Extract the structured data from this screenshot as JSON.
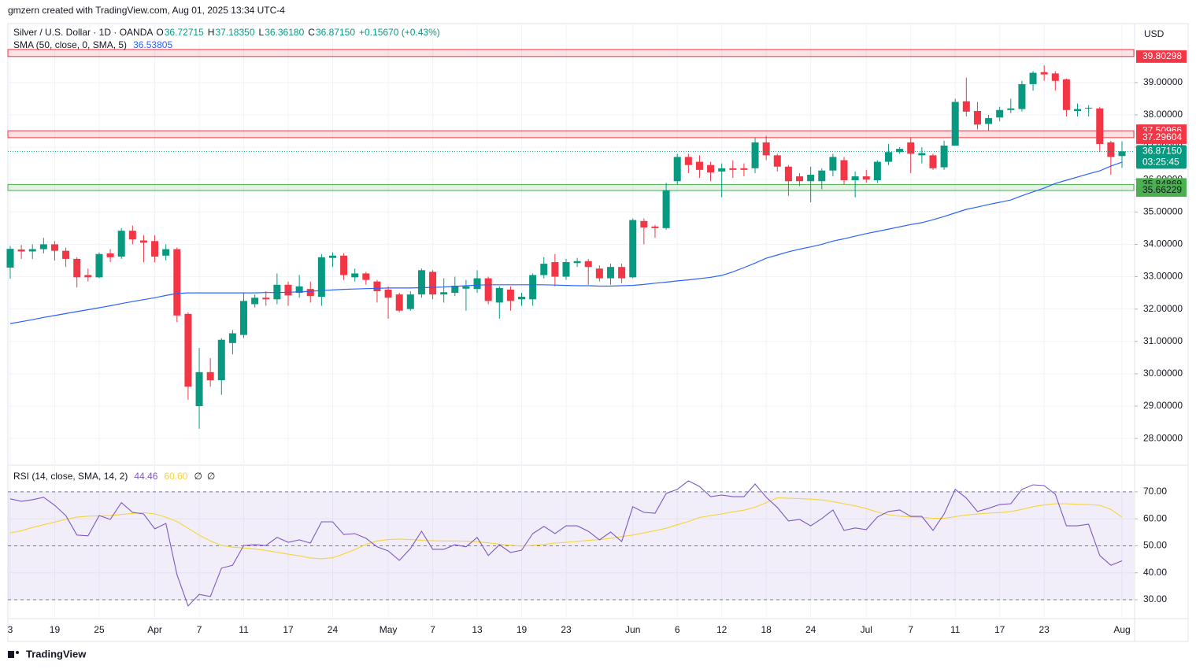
{
  "header": {
    "credit": "gmzern created with TradingView.com, Aug 01, 2025 13:34 UTC-4",
    "currency": "USD",
    "brand": "TradingView"
  },
  "chart_data": [
    {
      "type": "candlestick",
      "title": "Silver / U.S. Dollar · 1D · OANDA",
      "legend": {
        "fields": [
          {
            "key": "O",
            "value": "36.72715"
          },
          {
            "key": "H",
            "value": "37.18350"
          },
          {
            "key": "L",
            "value": "36.36180"
          },
          {
            "key": "C",
            "value": "36.87150"
          }
        ],
        "change": "+0.15670 (+0.43%)"
      },
      "up_color": "#089981",
      "down_color": "#f23645",
      "categories": [
        "3",
        null,
        null,
        null,
        "19",
        null,
        null,
        null,
        "25",
        null,
        null,
        null,
        null,
        "Apr",
        null,
        null,
        null,
        "7",
        null,
        null,
        null,
        "11",
        null,
        null,
        null,
        "17",
        null,
        null,
        null,
        "24",
        null,
        null,
        null,
        null,
        "May",
        null,
        null,
        null,
        "7",
        null,
        null,
        null,
        "13",
        null,
        null,
        null,
        "19",
        null,
        null,
        null,
        "23",
        null,
        null,
        null,
        null,
        null,
        "Jun",
        null,
        null,
        null,
        "6",
        null,
        null,
        null,
        "12",
        null,
        null,
        null,
        "18",
        null,
        null,
        null,
        "24",
        null,
        null,
        null,
        null,
        "Jul",
        null,
        null,
        null,
        "7",
        null,
        null,
        null,
        "11",
        null,
        null,
        null,
        "17",
        null,
        null,
        null,
        "23",
        null,
        null,
        null,
        null,
        null,
        null,
        "Aug"
      ],
      "open": [
        33.28,
        33.84,
        33.78,
        33.85,
        34.0,
        33.8,
        33.55,
        33.05,
        32.98,
        33.72,
        33.62,
        34.42,
        34.12,
        34.1,
        33.65,
        33.85,
        31.85,
        29.0,
        30.05,
        29.8,
        30.95,
        31.2,
        32.15,
        32.35,
        32.3,
        32.75,
        32.5,
        32.62,
        32.38,
        33.58,
        33.65,
        32.98,
        33.1,
        32.85,
        32.6,
        32.45,
        32.0,
        32.45,
        33.15,
        32.45,
        32.5,
        32.63,
        32.62,
        32.95,
        32.2,
        32.6,
        32.3,
        32.3,
        33.05,
        33.45,
        33.0,
        33.42,
        33.48,
        33.25,
        32.95,
        33.3,
        32.98,
        34.72,
        34.55,
        34.5,
        35.95,
        36.7,
        36.55,
        36.45,
        36.25,
        36.35,
        36.35,
        36.35,
        37.15,
        36.75,
        36.4,
        36.1,
        35.95,
        35.95,
        36.28,
        36.6,
        35.98,
        36.1,
        35.98,
        36.55,
        36.85,
        37.15,
        36.75,
        36.75,
        36.38,
        37.05,
        38.42,
        38.12,
        37.72,
        37.92,
        38.15,
        38.18,
        38.95,
        39.32,
        39.28,
        39.1,
        38.12,
        38.2,
        38.2,
        37.15,
        36.72715
      ],
      "high": [
        33.95,
        33.98,
        34.0,
        34.2,
        34.1,
        33.9,
        33.6,
        33.25,
        33.75,
        33.85,
        34.5,
        34.58,
        34.28,
        34.28,
        34.0,
        33.9,
        31.9,
        30.8,
        30.48,
        31.1,
        31.35,
        32.5,
        32.45,
        32.55,
        33.1,
        32.85,
        33.05,
        32.85,
        33.7,
        33.75,
        33.72,
        33.25,
        33.15,
        32.9,
        32.7,
        32.5,
        32.55,
        33.25,
        33.2,
        32.95,
        33.0,
        32.9,
        33.2,
        33.0,
        32.7,
        32.7,
        32.5,
        33.1,
        33.6,
        33.7,
        33.55,
        33.58,
        33.55,
        33.35,
        33.4,
        33.4,
        34.8,
        34.8,
        34.6,
        35.9,
        36.8,
        36.8,
        36.75,
        36.55,
        36.5,
        36.6,
        36.5,
        37.3,
        37.35,
        36.8,
        36.45,
        36.2,
        36.4,
        36.35,
        36.8,
        36.7,
        36.25,
        36.3,
        36.6,
        37.1,
        37.0,
        37.3,
        37.0,
        36.8,
        37.2,
        38.5,
        39.15,
        38.4,
        38.0,
        38.25,
        38.5,
        39.05,
        39.35,
        39.53,
        39.35,
        39.12,
        38.35,
        38.3,
        38.25,
        37.2,
        37.1835
      ],
      "low": [
        32.94,
        33.55,
        33.55,
        33.72,
        33.5,
        33.3,
        32.67,
        32.85,
        32.95,
        33.45,
        33.55,
        34.0,
        33.45,
        33.45,
        33.5,
        31.6,
        29.2,
        28.3,
        29.6,
        29.35,
        30.6,
        31.1,
        32.05,
        32.1,
        32.15,
        32.1,
        32.35,
        32.2,
        32.1,
        33.3,
        32.9,
        32.85,
        32.75,
        32.2,
        31.7,
        31.9,
        31.95,
        32.35,
        32.3,
        32.2,
        32.4,
        31.95,
        32.5,
        32.15,
        31.7,
        31.95,
        32.1,
        32.1,
        32.95,
        32.7,
        32.9,
        33.3,
        32.75,
        32.85,
        32.75,
        32.8,
        32.95,
        34.0,
        34.2,
        34.45,
        35.85,
        36.2,
        36.05,
        35.95,
        35.45,
        36.05,
        36.1,
        36.2,
        36.6,
        36.25,
        35.5,
        35.8,
        35.3,
        35.7,
        36.1,
        35.85,
        35.45,
        35.9,
        35.9,
        36.45,
        36.8,
        36.2,
        36.5,
        36.3,
        36.3,
        37.05,
        37.95,
        37.55,
        37.5,
        37.8,
        38.05,
        38.1,
        38.75,
        39.05,
        38.75,
        37.95,
        37.95,
        37.95,
        36.85,
        36.15,
        36.3618
      ],
      "close": [
        33.86,
        33.78,
        33.85,
        34.0,
        33.8,
        33.55,
        32.98,
        32.98,
        33.7,
        33.6,
        34.42,
        34.15,
        34.05,
        33.62,
        33.85,
        31.8,
        29.6,
        30.05,
        29.8,
        31.05,
        31.25,
        32.25,
        32.35,
        32.3,
        32.75,
        32.42,
        32.7,
        32.4,
        33.6,
        33.65,
        33.05,
        33.1,
        32.9,
        32.55,
        32.35,
        31.95,
        32.45,
        33.2,
        32.45,
        32.52,
        32.72,
        32.7,
        32.95,
        32.25,
        32.65,
        32.25,
        32.38,
        33.05,
        33.4,
        33.0,
        33.45,
        33.48,
        33.3,
        32.95,
        33.3,
        32.95,
        34.75,
        34.52,
        34.5,
        35.67,
        36.7,
        36.45,
        36.3,
        36.22,
        36.35,
        36.3,
        36.3,
        37.15,
        36.75,
        36.4,
        35.95,
        35.95,
        36.15,
        36.28,
        36.7,
        35.98,
        36.1,
        36.0,
        36.55,
        36.85,
        36.95,
        36.8,
        36.82,
        36.35,
        37.05,
        38.4,
        38.1,
        37.7,
        37.9,
        38.15,
        38.2,
        38.95,
        39.3,
        39.25,
        39.05,
        38.15,
        38.18,
        38.22,
        37.1,
        36.7,
        36.8715
      ],
      "series": [
        {
          "name": "SMA (50, close, 0, SMA, 5)",
          "legend_value": "36.53805",
          "color": "#2962ff",
          "values": [
            31.55,
            31.61,
            31.67,
            31.74,
            31.8,
            31.86,
            31.92,
            31.98,
            32.04,
            32.1,
            32.17,
            32.23,
            32.29,
            32.35,
            32.42,
            32.48,
            32.5,
            32.5,
            32.5,
            32.5,
            32.5,
            32.5,
            32.5,
            32.51,
            32.51,
            32.52,
            32.53,
            32.55,
            32.57,
            32.59,
            32.61,
            32.62,
            32.63,
            32.64,
            32.65,
            32.65,
            32.65,
            32.66,
            32.67,
            32.68,
            32.7,
            32.72,
            32.74,
            32.75,
            32.75,
            32.75,
            32.75,
            32.75,
            32.75,
            32.74,
            32.73,
            32.72,
            32.72,
            32.71,
            32.71,
            32.72,
            32.73,
            32.76,
            32.8,
            32.83,
            32.87,
            32.9,
            32.94,
            32.98,
            33.04,
            33.15,
            33.28,
            33.42,
            33.57,
            33.67,
            33.77,
            33.85,
            33.92,
            34.0,
            34.1,
            34.17,
            34.25,
            34.33,
            34.4,
            34.47,
            34.54,
            34.61,
            34.67,
            34.76,
            34.86,
            34.97,
            35.08,
            35.15,
            35.23,
            35.3,
            35.37,
            35.5,
            35.62,
            35.74,
            35.88,
            35.98,
            36.08,
            36.18,
            36.27,
            36.42,
            36.53805
          ]
        }
      ],
      "zones": [
        {
          "color": "#f23645",
          "text_color": "#ffffff",
          "edges": [
            {
              "value": 40.02
            },
            {
              "value": 39.80298,
              "label": "39.80298"
            }
          ]
        },
        {
          "color": "#f23645",
          "text_color": "#ffffff",
          "edges": [
            {
              "value": 37.50966,
              "label": "37.50966"
            },
            {
              "value": 37.29604,
              "label": "37.29604"
            }
          ]
        },
        {
          "color": "#4caf50",
          "text_color": "#131722",
          "edges": [
            {
              "value": 35.84869,
              "label": "35.84869"
            },
            {
              "value": 35.66229,
              "label": "35.66229"
            }
          ]
        }
      ],
      "last_price": {
        "value": 36.8715,
        "label": "36.87150",
        "countdown": "03:25:45",
        "color": "#089981"
      },
      "ylim": [
        27.2,
        40.82
      ],
      "yticks": [
        {
          "value": 28,
          "label": "28.00000"
        },
        {
          "value": 29,
          "label": "29.00000"
        },
        {
          "value": 30,
          "label": "30.00000"
        },
        {
          "value": 31,
          "label": "31.00000"
        },
        {
          "value": 32,
          "label": "32.00000"
        },
        {
          "value": 33,
          "label": "33.00000"
        },
        {
          "value": 34,
          "label": "34.00000"
        },
        {
          "value": 35,
          "label": "35.00000"
        },
        {
          "value": 36,
          "label": "36.00000"
        },
        {
          "value": 37,
          "label": "37.00000"
        },
        {
          "value": 38,
          "label": "38.00000"
        },
        {
          "value": 39,
          "label": "39.00000"
        }
      ],
      "grid": true
    },
    {
      "type": "line",
      "title": "RSI (14, close, SMA, 14, 2)",
      "extras": [
        "∅",
        "∅"
      ],
      "series": [
        {
          "name": "RSI",
          "legend_value": "44.46",
          "color": "#7e57c2",
          "values": [
            67.4,
            66.5,
            67.1,
            68.0,
            65.0,
            61.2,
            54.0,
            53.7,
            61.2,
            59.8,
            66.0,
            62.4,
            61.8,
            56.3,
            58.3,
            39.3,
            27.7,
            32.0,
            31.2,
            41.7,
            42.8,
            50.1,
            50.4,
            50.1,
            53.1,
            51.3,
            52.2,
            51.0,
            58.9,
            58.9,
            54.2,
            54.5,
            52.8,
            49.6,
            48.1,
            44.6,
            49.0,
            55.4,
            48.7,
            48.7,
            50.4,
            49.6,
            53.1,
            46.4,
            50.4,
            47.5,
            48.4,
            54.5,
            57.2,
            54.5,
            57.4,
            57.4,
            55.4,
            52.2,
            55.1,
            51.6,
            64.5,
            62.4,
            62.1,
            69.4,
            70.9,
            74.1,
            72.0,
            68.2,
            68.8,
            68.2,
            68.2,
            72.9,
            68.0,
            64.2,
            59.2,
            59.8,
            57.4,
            60.1,
            63.3,
            55.7,
            56.6,
            56.0,
            60.7,
            62.7,
            63.3,
            60.9,
            60.9,
            55.7,
            61.8,
            70.9,
            67.7,
            62.7,
            63.9,
            65.3,
            65.6,
            70.9,
            72.6,
            72.3,
            69.1,
            57.4,
            57.4,
            58.0,
            46.4,
            42.8,
            44.46
          ]
        },
        {
          "name": "RSI-based MA",
          "legend_value": "60.60",
          "color": "#f5d33b",
          "values": [
            54.8,
            55.6,
            56.8,
            57.8,
            58.8,
            59.8,
            60.6,
            61.0,
            61.1,
            61.2,
            61.6,
            62.0,
            62.3,
            61.8,
            60.6,
            59.0,
            56.5,
            54.0,
            51.8,
            50.1,
            49.5,
            49.2,
            48.8,
            48.3,
            47.6,
            46.9,
            46.3,
            45.5,
            45.2,
            45.6,
            47.0,
            48.6,
            50.5,
            51.8,
            52.3,
            52.5,
            52.3,
            52.0,
            51.9,
            51.8,
            51.8,
            51.7,
            51.5,
            51.1,
            50.6,
            50.2,
            49.9,
            50.1,
            50.5,
            51.0,
            51.3,
            51.6,
            52.0,
            52.3,
            52.8,
            53.4,
            54.0,
            54.8,
            55.6,
            56.5,
            57.8,
            59.0,
            60.5,
            61.2,
            61.8,
            62.6,
            63.2,
            64.3,
            66.0,
            67.8,
            67.6,
            67.5,
            67.3,
            67.0,
            66.4,
            65.6,
            64.8,
            63.8,
            62.5,
            61.5,
            61.0,
            60.7,
            60.5,
            60.2,
            60.2,
            60.8,
            61.4,
            61.8,
            62.1,
            62.3,
            62.7,
            63.5,
            64.5,
            65.2,
            65.6,
            65.6,
            65.4,
            65.3,
            65.0,
            63.5,
            60.6
          ]
        }
      ],
      "levels": [
        70,
        50,
        30
      ],
      "ylim": [
        23.3,
        79.6
      ],
      "yticks": [
        {
          "value": 30,
          "label": "30.00"
        },
        {
          "value": 40,
          "label": "40.00"
        },
        {
          "value": 50,
          "label": "50.00"
        },
        {
          "value": 60,
          "label": "60.00"
        },
        {
          "value": 70,
          "label": "70.00"
        }
      ],
      "grid": true
    }
  ]
}
